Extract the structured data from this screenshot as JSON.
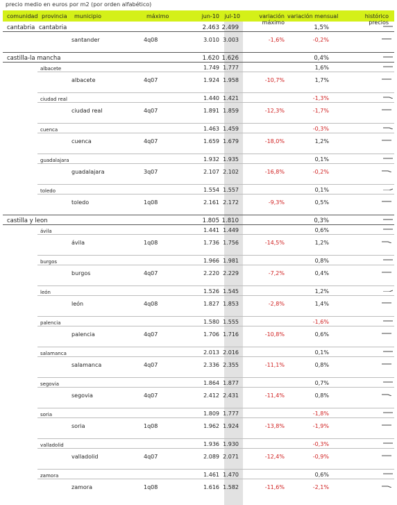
{
  "caption": "precio medio en euros por m2 (por orden alfabético)",
  "colors": {
    "header": "#d4f018",
    "negative": "#d02020",
    "jul_band": "#e2e2e2"
  },
  "headers": {
    "comunidad": "comunidad",
    "provincia": "provincia",
    "municipio": "municipio",
    "maximo": "máximo",
    "jun": "jun-10",
    "jul": "jul-10",
    "var_max": "variación máximo",
    "var_men": "variación mensual",
    "historico": "histórico precios"
  },
  "rows": [
    {
      "type": "comunidad",
      "comunidad": "cantabria",
      "provincia": "cantabria",
      "jun": "2.463",
      "jul": "2.499",
      "var_men": "1,5%",
      "spark": "flat"
    },
    {
      "type": "municipio",
      "municipio": "santander",
      "maximo": "4q08",
      "jun": "3.010",
      "jul": "3.003",
      "var_max": "-1,6%",
      "var_men": "-0,2%",
      "spark": "flat"
    },
    {
      "type": "comunidad",
      "comunidad": "castilla-la mancha",
      "jun": "1.620",
      "jul": "1.626",
      "var_men": "0,4%",
      "spark": "flat"
    },
    {
      "type": "provincia",
      "provincia": "albacete",
      "jun": "1.749",
      "jul": "1.777",
      "var_men": "1,6%",
      "spark": "flat"
    },
    {
      "type": "municipio",
      "municipio": "albacete",
      "maximo": "4q07",
      "jun": "1.924",
      "jul": "1.958",
      "var_max": "-10,7%",
      "var_men": "1,7%",
      "spark": "flat"
    },
    {
      "type": "provincia",
      "provincia": "ciudad real",
      "jun": "1.440",
      "jul": "1.421",
      "var_men": "-1,3%",
      "spark": "tail-down"
    },
    {
      "type": "municipio",
      "municipio": "ciudad real",
      "maximo": "4q07",
      "jun": "1.891",
      "jul": "1.859",
      "var_max": "-12,3%",
      "var_men": "-1,7%",
      "spark": "flat"
    },
    {
      "type": "provincia",
      "provincia": "cuenca",
      "jun": "1.463",
      "jul": "1.459",
      "var_men": "-0,3%",
      "spark": "tail-down"
    },
    {
      "type": "municipio",
      "municipio": "cuenca",
      "maximo": "4q07",
      "jun": "1.659",
      "jul": "1.679",
      "var_max": "-18,0%",
      "var_men": "1,2%",
      "spark": "flat"
    },
    {
      "type": "provincia",
      "provincia": "guadalajara",
      "jun": "1.932",
      "jul": "1.935",
      "var_men": "0,1%",
      "spark": "flat"
    },
    {
      "type": "municipio",
      "municipio": "guadalajara",
      "maximo": "3q07",
      "jun": "2.107",
      "jul": "2.102",
      "var_max": "-16,8%",
      "var_men": "-0,2%",
      "spark": "tail-down"
    },
    {
      "type": "provincia",
      "provincia": "toledo",
      "jun": "1.554",
      "jul": "1.557",
      "var_men": "0,1%",
      "spark": "tail-up"
    },
    {
      "type": "municipio",
      "municipio": "toledo",
      "maximo": "1q08",
      "jun": "2.161",
      "jul": "2.172",
      "var_max": "-9,3%",
      "var_men": "0,5%",
      "spark": "flat"
    },
    {
      "type": "comunidad",
      "comunidad": "castilla y leon",
      "jun": "1.805",
      "jul": "1.810",
      "var_men": "0,3%",
      "spark": "flat"
    },
    {
      "type": "provincia",
      "provincia": "ávila",
      "jun": "1.441",
      "jul": "1.449",
      "var_men": "0,6%",
      "spark": "flat"
    },
    {
      "type": "municipio",
      "municipio": "ávila",
      "maximo": "1q08",
      "jun": "1.736",
      "jul": "1.756",
      "var_max": "-14,5%",
      "var_men": "1,2%",
      "spark": "tail-down"
    },
    {
      "type": "provincia",
      "provincia": "burgos",
      "jun": "1.966",
      "jul": "1.981",
      "var_men": "0,8%",
      "spark": "flat"
    },
    {
      "type": "municipio",
      "municipio": "burgos",
      "maximo": "4q07",
      "jun": "2.220",
      "jul": "2.229",
      "var_max": "-7,2%",
      "var_men": "0,4%",
      "spark": "flat"
    },
    {
      "type": "provincia",
      "provincia": "león",
      "jun": "1.526",
      "jul": "1.545",
      "var_men": "1,2%",
      "spark": "tail-up"
    },
    {
      "type": "municipio",
      "municipio": "león",
      "maximo": "4q08",
      "jun": "1.827",
      "jul": "1.853",
      "var_max": "-2,8%",
      "var_men": "1,4%",
      "spark": "flat"
    },
    {
      "type": "provincia",
      "provincia": "palencia",
      "jun": "1.580",
      "jul": "1.555",
      "var_men": "-1,6%",
      "spark": "flat"
    },
    {
      "type": "municipio",
      "municipio": "palencia",
      "maximo": "4q07",
      "jun": "1.706",
      "jul": "1.716",
      "var_max": "-10,8%",
      "var_men": "0,6%",
      "spark": "flat"
    },
    {
      "type": "provincia",
      "provincia": "salamanca",
      "jun": "2.013",
      "jul": "2.016",
      "var_men": "0,1%",
      "spark": "flat"
    },
    {
      "type": "municipio",
      "municipio": "salamanca",
      "maximo": "4q07",
      "jun": "2.336",
      "jul": "2.355",
      "var_max": "-11,1%",
      "var_men": "0,8%",
      "spark": "flat"
    },
    {
      "type": "provincia",
      "provincia": "segovia",
      "jun": "1.864",
      "jul": "1.877",
      "var_men": "0,7%",
      "spark": "flat"
    },
    {
      "type": "municipio",
      "municipio": "segovia",
      "maximo": "4q07",
      "jun": "2.412",
      "jul": "2.431",
      "var_max": "-11,4%",
      "var_men": "0,8%",
      "spark": "tail-down"
    },
    {
      "type": "provincia",
      "provincia": "soria",
      "jun": "1.809",
      "jul": "1.777",
      "var_men": "-1,8%",
      "spark": "flat"
    },
    {
      "type": "municipio",
      "municipio": "soria",
      "maximo": "1q08",
      "jun": "1.962",
      "jul": "1.924",
      "var_max": "-13,8%",
      "var_men": "-1,9%",
      "spark": "flat"
    },
    {
      "type": "provincia",
      "provincia": "valladolid",
      "jun": "1.936",
      "jul": "1.930",
      "var_men": "-0,3%",
      "spark": "flat"
    },
    {
      "type": "municipio",
      "municipio": "valladolid",
      "maximo": "4q07",
      "jun": "2.089",
      "jul": "2.071",
      "var_max": "-12,4%",
      "var_men": "-0,9%",
      "spark": "flat"
    },
    {
      "type": "provincia",
      "provincia": "zamora",
      "jun": "1.461",
      "jul": "1.470",
      "var_men": "0,6%",
      "spark": "flat"
    },
    {
      "type": "municipio",
      "municipio": "zamora",
      "maximo": "1q08",
      "jun": "1.616",
      "jul": "1.582",
      "var_max": "-11,6%",
      "var_men": "-2,1%",
      "spark": "tail-down"
    }
  ]
}
